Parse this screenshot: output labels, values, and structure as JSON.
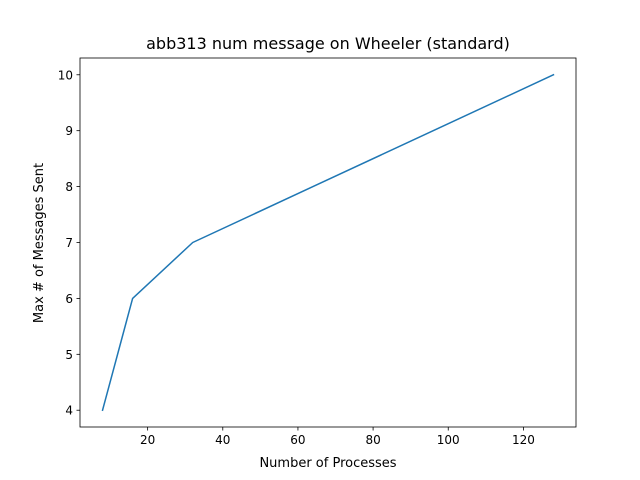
{
  "chart_data": {
    "type": "line",
    "title": "abb313 num message on Wheeler (standard)",
    "xlabel": "Number of Processes",
    "ylabel": "Max # of Messages Sent",
    "xlim": [
      2,
      134
    ],
    "ylim": [
      3.7,
      10.3
    ],
    "xticks": [
      20,
      40,
      60,
      80,
      100,
      120
    ],
    "yticks": [
      4,
      5,
      6,
      7,
      8,
      9,
      10
    ],
    "grid": false,
    "series": [
      {
        "color": "#1f77b4",
        "x": [
          8,
          16,
          32,
          64,
          128
        ],
        "y": [
          4,
          6,
          7,
          8,
          10
        ]
      }
    ]
  }
}
